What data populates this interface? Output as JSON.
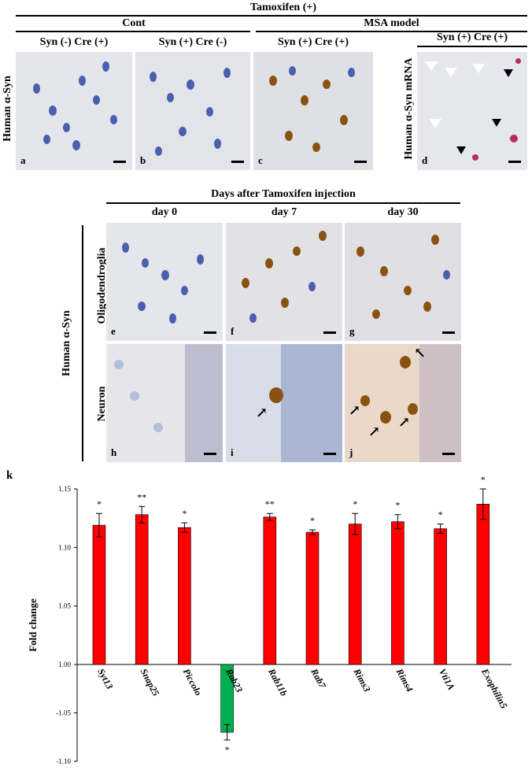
{
  "top": {
    "treatment": "Tamoxifen (+)",
    "group_cont": "Cont",
    "group_msa": "MSA model",
    "col_a": "Syn (-) Cre (+)",
    "col_b": "Syn (+) Cre (-)",
    "col_c": "Syn (+) Cre (+)",
    "col_d": "Syn (+) Cre (+)",
    "row_label": "Human α-Syn",
    "row_label_d": "Human α-Syn mRNA",
    "panels": [
      "a",
      "b",
      "c",
      "d"
    ]
  },
  "middle": {
    "title": "Days after Tamoxifen injection",
    "col_day0": "day 0",
    "col_day7": "day 7",
    "col_day30": "day 30",
    "row_group": "Human α-Syn",
    "row_oligo": "Oligodendroglia",
    "row_neuron": "Neuron",
    "panels": [
      "e",
      "f",
      "g",
      "h",
      "i",
      "j"
    ]
  },
  "chart_label": "k",
  "chart_data": {
    "type": "bar",
    "categories": [
      "Syt13",
      "Snap25",
      "Piccolo",
      "Rab23",
      "Rab11b",
      "Rab7",
      "Rims3",
      "Rims4",
      "Vti1A",
      "Exophilin5"
    ],
    "values": [
      1.119,
      1.128,
      1.117,
      -1.07,
      1.126,
      1.113,
      1.12,
      1.122,
      1.116,
      1.137
    ],
    "errors": [
      0.01,
      0.007,
      0.004,
      0.008,
      0.003,
      0.002,
      0.009,
      0.006,
      0.004,
      0.013
    ],
    "significance": [
      "*",
      "**",
      "*",
      "*",
      "**",
      "*",
      "*",
      "*",
      "*",
      "*"
    ],
    "colors": {
      "up": "#ff0000",
      "down": "#00b050"
    },
    "ylabel": "Fold change",
    "yticks": [
      "1.15",
      "1.10",
      "1.05",
      "1.00",
      "-1.05",
      "-1.10"
    ],
    "ylim": [
      -1.1,
      1.15
    ],
    "grid": false
  }
}
